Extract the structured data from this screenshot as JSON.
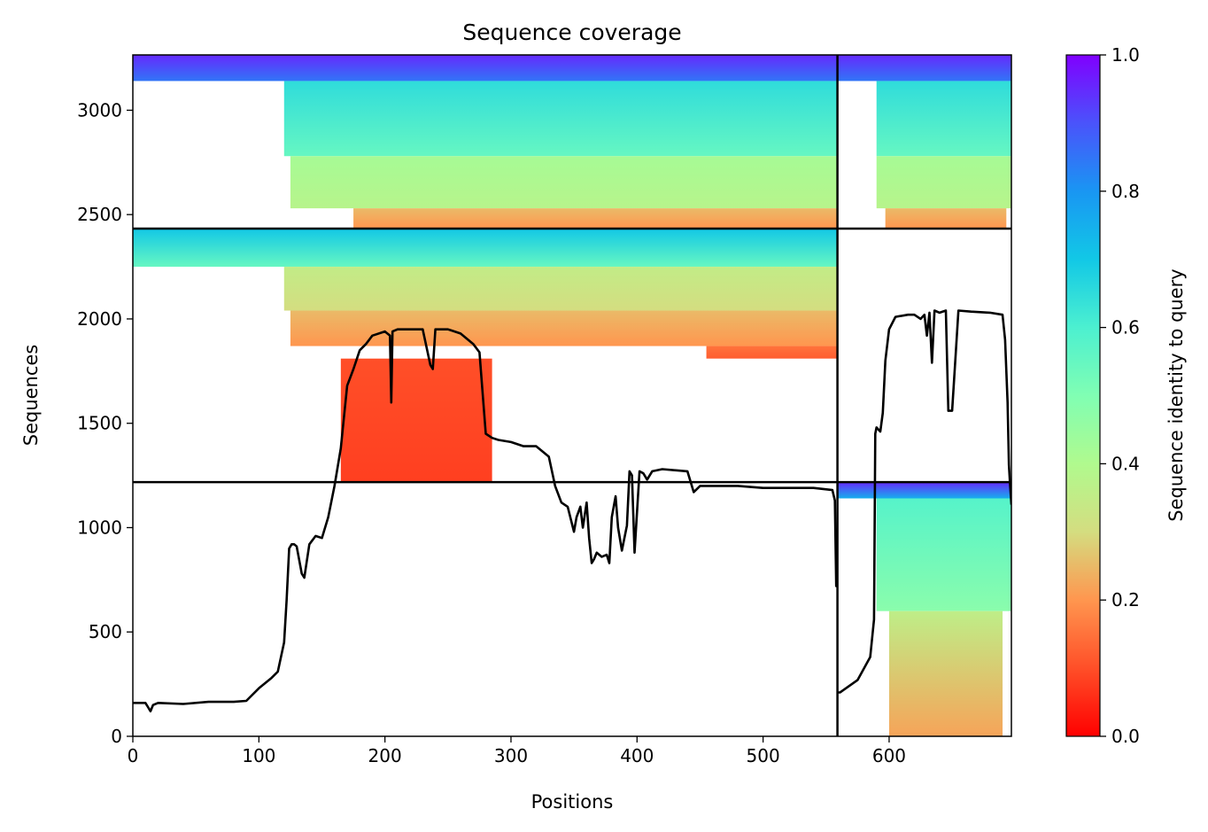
{
  "chart_data": {
    "type": "heatmap",
    "title": "Sequence coverage",
    "xlabel": "Positions",
    "ylabel": "Sequences",
    "xlim": [
      0,
      697
    ],
    "ylim": [
      0,
      3265
    ],
    "xticks": [
      0,
      100,
      200,
      300,
      400,
      500,
      600
    ],
    "yticks": [
      0,
      500,
      1000,
      1500,
      2000,
      2500,
      3000
    ],
    "grid": false,
    "colormap": "rainbow_r",
    "colorbar": {
      "label": "Sequence identity to query",
      "range": [
        0.0,
        1.0
      ],
      "ticks": [
        "0.0",
        "0.2",
        "0.4",
        "0.6",
        "0.8",
        "1.0"
      ]
    },
    "block_dividers": {
      "x": [
        559
      ],
      "y": [
        1218,
        2433
      ]
    },
    "blocks": [
      {
        "x": [
          0,
          559
        ],
        "y": [
          2433,
          3265
        ],
        "pairing": "both chains",
        "rows": [
          {
            "y0": 3140,
            "y1": 3265,
            "start": 0,
            "end": 559,
            "id_top": 0.95,
            "id_bottom": 0.85
          },
          {
            "y0": 2780,
            "y1": 3140,
            "start": 120,
            "end": 559,
            "id_top": 0.65,
            "id_bottom": 0.55
          },
          {
            "y0": 2530,
            "y1": 2780,
            "start": 125,
            "end": 559,
            "id_top": 0.42,
            "id_bottom": 0.38
          },
          {
            "y0": 2433,
            "y1": 2530,
            "start": 175,
            "end": 559,
            "id_top": 0.25,
            "id_bottom": 0.2
          }
        ]
      },
      {
        "x": [
          559,
          697
        ],
        "y": [
          2433,
          3265
        ],
        "pairing": "both chains",
        "rows": [
          {
            "y0": 3140,
            "y1": 3265,
            "start": 559,
            "end": 697,
            "id_top": 0.95,
            "id_bottom": 0.85
          },
          {
            "y0": 2780,
            "y1": 3140,
            "start": 590,
            "end": 697,
            "id_top": 0.65,
            "id_bottom": 0.55
          },
          {
            "y0": 2530,
            "y1": 2780,
            "start": 590,
            "end": 697,
            "id_top": 0.42,
            "id_bottom": 0.38
          },
          {
            "y0": 2433,
            "y1": 2530,
            "start": 597,
            "end": 693,
            "id_top": 0.25,
            "id_bottom": 0.2
          }
        ]
      },
      {
        "x": [
          0,
          559
        ],
        "y": [
          1218,
          2433
        ],
        "pairing": "first chain",
        "rows": [
          {
            "y0": 2250,
            "y1": 2433,
            "start": 0,
            "end": 559,
            "id_top": 0.7,
            "id_bottom": 0.55
          },
          {
            "y0": 2040,
            "y1": 2250,
            "start": 120,
            "end": 559,
            "id_top": 0.35,
            "id_bottom": 0.3
          },
          {
            "y0": 1870,
            "y1": 2040,
            "start": 125,
            "end": 559,
            "id_top": 0.25,
            "id_bottom": 0.2
          },
          {
            "y0": 1810,
            "y1": 1870,
            "start": 455,
            "end": 559,
            "id_top": 0.15,
            "id_bottom": 0.12
          },
          {
            "y0": 1218,
            "y1": 1810,
            "start": 165,
            "end": 285,
            "id_top": 0.1,
            "id_bottom": 0.08
          }
        ]
      },
      {
        "x": [
          559,
          697
        ],
        "y": [
          0,
          1218
        ],
        "pairing": "second chain",
        "rows": [
          {
            "y0": 1140,
            "y1": 1218,
            "start": 559,
            "end": 697,
            "id_top": 0.95,
            "id_bottom": 0.75
          },
          {
            "y0": 600,
            "y1": 1140,
            "start": 590,
            "end": 697,
            "id_top": 0.58,
            "id_bottom": 0.48
          },
          {
            "y0": 0,
            "y1": 600,
            "start": 600,
            "end": 690,
            "id_top": 0.36,
            "id_bottom": 0.22
          }
        ]
      }
    ],
    "coverage_line": {
      "color": "#000000",
      "segments": [
        {
          "x": [
            0,
            10,
            12,
            14,
            16,
            20,
            40,
            60,
            80,
            90,
            100,
            110,
            115,
            120,
            122,
            124,
            126,
            128,
            130,
            134,
            136,
            140,
            145,
            150,
            155,
            160,
            165,
            170,
            175,
            180,
            185,
            190,
            200,
            204,
            205,
            206,
            210,
            220,
            230,
            236,
            238,
            240,
            245,
            250,
            260,
            270,
            275,
            280,
            285,
            290,
            300,
            310,
            320,
            330,
            335,
            340,
            345,
            350,
            352,
            355,
            357,
            360,
            362,
            364,
            366,
            368,
            372,
            376,
            378,
            380,
            383,
            385,
            388,
            392,
            394,
            396,
            398,
            402,
            405,
            408,
            412,
            420,
            440,
            445,
            450,
            460,
            480,
            500,
            520,
            540,
            555,
            557,
            558,
            559
          ],
          "y": [
            160,
            160,
            140,
            120,
            150,
            160,
            155,
            165,
            165,
            170,
            230,
            280,
            310,
            450,
            650,
            900,
            920,
            920,
            910,
            780,
            760,
            920,
            960,
            950,
            1050,
            1200,
            1380,
            1680,
            1760,
            1850,
            1880,
            1920,
            1940,
            1920,
            1600,
            1940,
            1950,
            1950,
            1950,
            1780,
            1760,
            1950,
            1950,
            1950,
            1930,
            1880,
            1840,
            1450,
            1430,
            1420,
            1410,
            1390,
            1390,
            1340,
            1200,
            1120,
            1100,
            980,
            1050,
            1100,
            1000,
            1120,
            950,
            830,
            850,
            880,
            860,
            870,
            830,
            1050,
            1150,
            1000,
            890,
            1010,
            1270,
            1250,
            880,
            1270,
            1260,
            1230,
            1270,
            1280,
            1270,
            1170,
            1200,
            1200,
            1200,
            1190,
            1190,
            1190,
            1180,
            1130,
            720,
            720
          ]
        },
        {
          "x": [
            559,
            561,
            575,
            585,
            588,
            589,
            590,
            593,
            595,
            597,
            600,
            605,
            615,
            620,
            625,
            628,
            630,
            632,
            634,
            636,
            640,
            645,
            647,
            650,
            655,
            665,
            680,
            690,
            692,
            694,
            695,
            696,
            697
          ],
          "y": [
            210,
            210,
            270,
            380,
            560,
            1450,
            1480,
            1460,
            1550,
            1800,
            1950,
            2010,
            2020,
            2020,
            2000,
            2020,
            1920,
            2030,
            1790,
            2040,
            2030,
            2040,
            1560,
            1560,
            2040,
            2035,
            2030,
            2020,
            1900,
            1600,
            1300,
            1200,
            1110
          ]
        }
      ]
    }
  }
}
